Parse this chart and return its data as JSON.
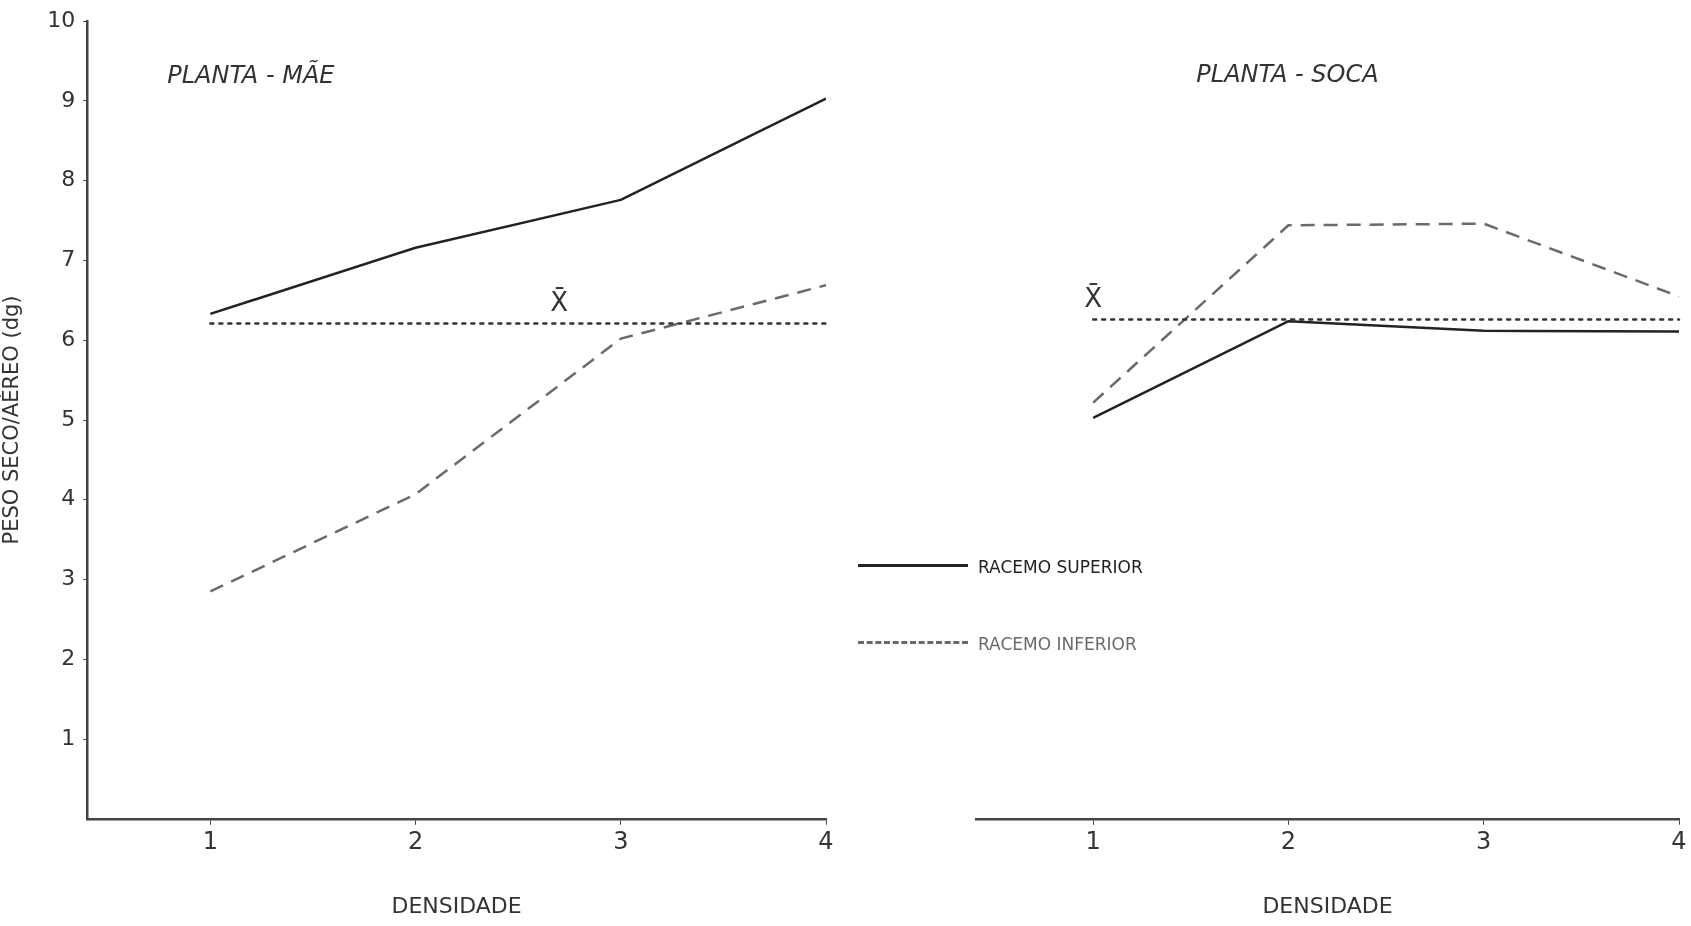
{
  "chart_data": [
    {
      "type": "line",
      "title": "PLANTA - MÃE",
      "xlabel": "DENSIDADE",
      "ylabel": "PESO SECO/AÉREO (dg)",
      "x": [
        1,
        2,
        3,
        4
      ],
      "series": [
        {
          "color": "#222222",
          "line_style": "solid",
          "values": [
            6.33,
            7.16,
            7.76,
            9.03
          ]
        },
        {
          "color": "#6a6a6a",
          "line_style": "dashed",
          "values": [
            2.85,
            4.07,
            6.02,
            6.69
          ]
        }
      ],
      "xlim": [
        0.4,
        4
      ],
      "xticks": [
        1,
        2,
        3,
        4
      ],
      "ylim": [
        0,
        10
      ],
      "yticks": [
        1,
        2,
        3,
        4,
        5,
        6,
        7,
        8,
        9,
        10
      ],
      "ref_lines": [
        {
          "axis": "y",
          "value": 6.21,
          "line_style": "dotted",
          "color": "#333333"
        }
      ],
      "annotations": [
        {
          "text": "X̄",
          "x": 2.7,
          "y": 6.21
        }
      ],
      "grid": false,
      "legend": false,
      "marker": "none"
    },
    {
      "type": "line",
      "title": "PLANTA - SOCA",
      "xlabel": "DENSIDADE",
      "x": [
        1,
        2,
        3,
        4
      ],
      "series": [
        {
          "name": "RACEMO SUPERIOR",
          "color": "#222222",
          "line_style": "solid",
          "values": [
            5.02,
            6.23,
            6.11,
            6.1
          ]
        },
        {
          "name": "RACEMO INFERIOR",
          "color": "#6a6a6a",
          "line_style": "dashed",
          "values": [
            5.21,
            7.43,
            7.45,
            6.54
          ]
        }
      ],
      "xlim": [
        0.4,
        4
      ],
      "xticks": [
        1,
        2,
        3,
        4
      ],
      "ylim": [
        0,
        10
      ],
      "tick_labels": "x",
      "ref_lines": [
        {
          "axis": "y",
          "value": 6.25,
          "line_style": "dotted",
          "color": "#333333"
        }
      ],
      "annotations": [
        {
          "text": "X̄",
          "x": 1,
          "y": 6.25
        }
      ],
      "grid": false,
      "legend": "left",
      "marker": "none"
    }
  ]
}
